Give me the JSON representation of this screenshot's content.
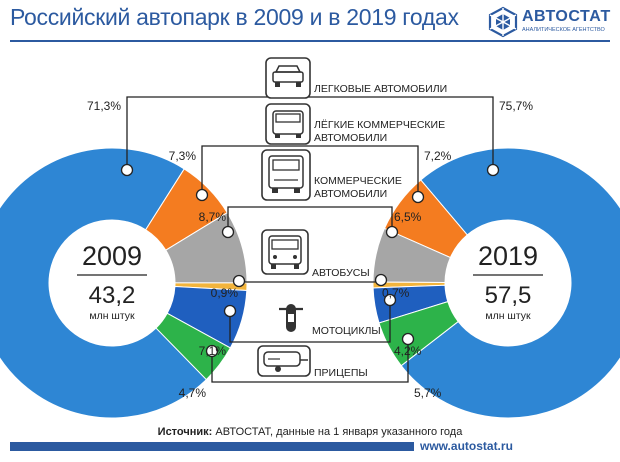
{
  "title": "Российский автопарк в 2009 и в 2019 годах",
  "logo": {
    "name": "АВТОСТАТ",
    "tagline": "АНАЛИТИЧЕСКОЕ АГЕНТСТВО"
  },
  "source": {
    "label": "Источник:",
    "text": "АВТОСТАТ, данные на 1 января указанного года"
  },
  "footer_url": "www.autostat.ru",
  "icons": [
    "car-icon",
    "van-icon",
    "truck-icon",
    "bus-icon",
    "motorcycle-icon",
    "trailer-icon"
  ],
  "colors": {
    "title": "#2c5aa0",
    "passenger_cars": "#2e86d4",
    "light_commercial": "#f47c20",
    "commercial": "#a6a6a6",
    "buses": "#f2b43c",
    "motorcycles": "#1f5fbf",
    "trailers": "#2db34a"
  },
  "chart_data": [
    {
      "type": "pie",
      "year": "2009",
      "center_value": "43,2",
      "center_unit": "млн штук",
      "categories": [
        "ЛЕГКОВЫЕ АВТОМОБИЛИ",
        "ЛЁГКИЕ КОММЕРЧЕСКИЕ АВТОМОБИЛИ",
        "КОММЕРЧЕСКИЕ АВТОМОБИЛИ",
        "АВТОБУСЫ",
        "МОТОЦИКЛЫ",
        "ПРИЦЕПЫ"
      ],
      "values": [
        71.3,
        7.3,
        8.7,
        0.9,
        7.1,
        4.7
      ],
      "labels": [
        "71,3%",
        "7,3%",
        "8,7%",
        "0,9%",
        "7,1%",
        "4,7%"
      ]
    },
    {
      "type": "pie",
      "year": "2019",
      "center_value": "57,5",
      "center_unit": "млн штук",
      "categories": [
        "ЛЕГКОВЫЕ АВТОМОБИЛИ",
        "ЛЁГКИЕ КОММЕРЧЕСКИЕ АВТОМОБИЛИ",
        "КОММЕРЧЕСКИЕ АВТОМОБИЛИ",
        "АВТОБУСЫ",
        "МОТОЦИКЛЫ",
        "ПРИЦЕПЫ"
      ],
      "values": [
        75.7,
        7.2,
        6.5,
        0.7,
        4.2,
        5.7
      ],
      "labels": [
        "75,7%",
        "7,2%",
        "6,5%",
        "0,7%",
        "4,2%",
        "5,7%"
      ]
    }
  ],
  "category_labels": [
    [
      "ЛЕГКОВЫЕ АВТОМОБИЛИ"
    ],
    [
      "ЛЁГКИЕ КОММЕРЧЕСКИЕ",
      "АВТОМОБИЛИ"
    ],
    [
      "КОММЕРЧЕСКИЕ",
      "АВТОМОБИЛИ"
    ],
    [
      "АВТОБУСЫ"
    ],
    [
      "МОТОЦИКЛЫ"
    ],
    [
      "ПРИЦЕПЫ"
    ]
  ]
}
